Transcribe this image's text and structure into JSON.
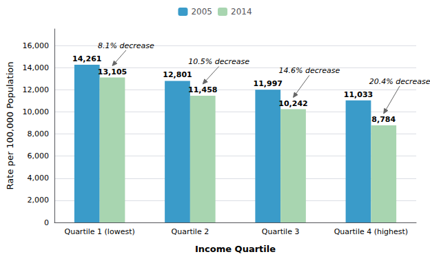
{
  "chart_data": {
    "type": "bar",
    "categories": [
      "Quartile 1 (lowest)",
      "Quartile 2",
      "Quartile 3",
      "Quartile 4 (highest)"
    ],
    "series": [
      {
        "name": "2005",
        "color": "#3A9BC9",
        "values": [
          14261,
          12801,
          11997,
          11033
        ],
        "value_labels": [
          "14,261",
          "12,801",
          "11,997",
          "11,033"
        ]
      },
      {
        "name": "2014",
        "color": "#A8D5B0",
        "values": [
          13105,
          11458,
          10242,
          8784
        ],
        "value_labels": [
          "13,105",
          "11,458",
          "10,242",
          "8,784"
        ]
      }
    ],
    "xlabel": "Income Quartile",
    "ylabel": "Rate per 100,000 Population",
    "ylim": [
      0,
      17500
    ],
    "yticks": [
      0,
      {
        "value": 2000,
        "label": "2,000"
      },
      {
        "value": 4000,
        "label": "4,000"
      },
      {
        "value": 6000,
        "label": "6,000"
      },
      {
        "value": 8000,
        "label": "8,000"
      },
      {
        "value": 10000,
        "label": "10,000"
      },
      {
        "value": 12000,
        "label": "12,000"
      },
      {
        "value": 14000,
        "label": "14,000"
      },
      {
        "value": 16000,
        "label": "16,000"
      }
    ],
    "grid": true,
    "legend": "top",
    "data_labels": true,
    "annotations": [
      {
        "text": "8.1% decrease",
        "category": "Quartile 1 (lowest)",
        "series": "2014",
        "color": "#666666"
      },
      {
        "text": "10.5% decrease",
        "category": "Quartile 2",
        "series": "2014",
        "color": "#666666"
      },
      {
        "text": "14.6% decrease",
        "category": "Quartile 3",
        "series": "2014",
        "color": "#666666"
      },
      {
        "text": "20.4% decrease",
        "category": "Quartile 4 (highest)",
        "series": "2014",
        "color": "#666666"
      }
    ]
  }
}
